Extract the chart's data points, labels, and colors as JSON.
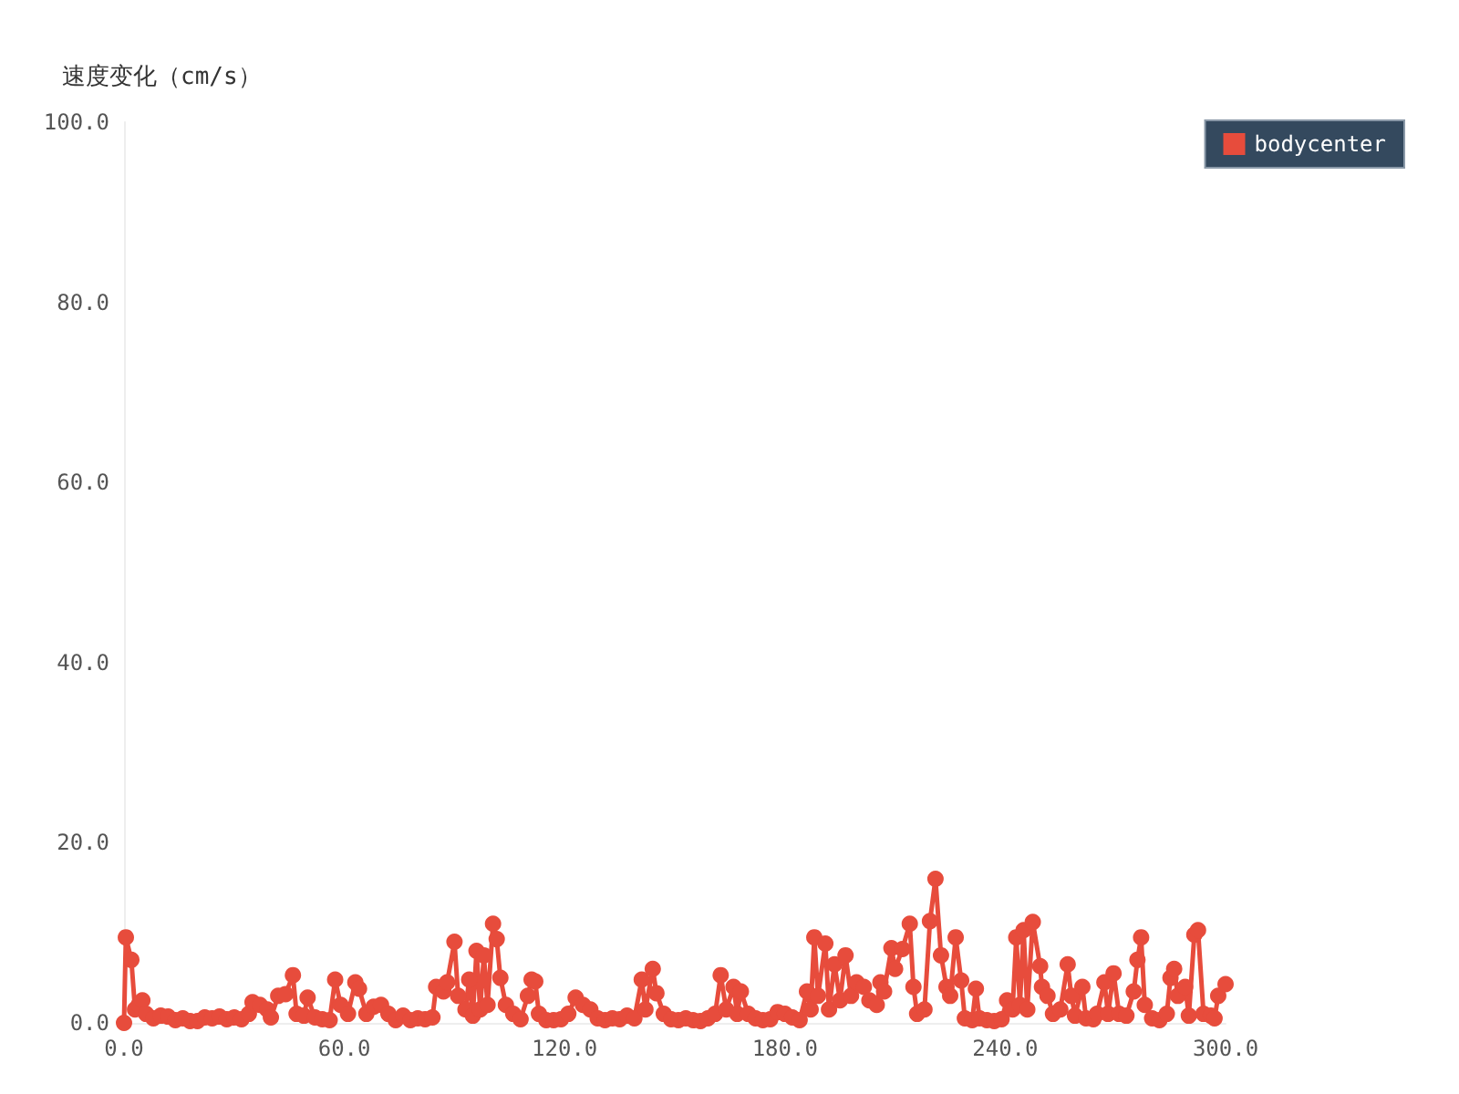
{
  "chart_data": {
    "type": "line",
    "ylabel": "速度变化（cm/s）",
    "x": [
      0,
      0.5,
      2,
      3,
      4,
      5,
      6,
      8,
      10,
      12,
      14,
      16,
      18,
      20,
      22,
      24,
      26,
      28,
      30,
      32,
      34,
      35,
      37,
      39,
      40,
      42,
      44,
      46,
      47,
      49,
      50,
      52,
      54,
      56,
      57.5,
      59,
      61,
      63,
      64,
      66,
      68,
      70,
      72,
      74,
      76,
      78,
      80,
      82,
      84,
      85,
      87,
      88,
      90,
      91,
      93,
      94,
      95,
      96,
      97,
      98,
      99,
      100.5,
      101.5,
      102.5,
      104,
      106,
      108,
      110,
      111,
      112,
      113,
      115,
      117,
      119,
      121,
      123,
      125,
      127,
      129,
      131,
      133,
      135,
      137,
      139,
      141,
      142,
      144,
      145,
      147,
      149,
      151,
      153,
      155,
      157,
      159,
      161,
      162.5,
      164,
      166,
      167,
      168,
      170,
      172,
      174,
      176,
      178,
      180,
      182,
      184,
      186,
      187,
      188,
      189,
      191,
      192,
      193.5,
      195,
      196.5,
      198,
      199.5,
      201.5,
      203,
      205,
      206,
      207,
      209,
      210,
      212,
      214,
      215,
      216,
      218,
      219.5,
      221,
      222.5,
      224,
      225,
      226.5,
      228,
      229,
      231,
      232,
      233,
      235,
      237,
      239,
      240.5,
      242,
      243,
      244,
      245,
      246,
      247.5,
      249.5,
      250,
      251.5,
      253,
      255,
      257,
      258,
      259,
      261,
      262,
      264,
      265,
      267,
      268,
      269.5,
      271,
      273,
      275,
      276,
      277,
      278,
      280,
      282,
      284,
      285,
      286,
      287,
      289,
      290,
      291.5,
      292.5,
      294,
      296,
      297,
      298,
      300
    ],
    "series": [
      {
        "name": "bodycenter",
        "color": "#e74c3c",
        "values": [
          0,
          9.5,
          7,
          1.5,
          2,
          2.5,
          1,
          0.5,
          0.8,
          0.7,
          0.3,
          0.5,
          0.2,
          0.2,
          0.6,
          0.5,
          0.7,
          0.4,
          0.6,
          0.4,
          1,
          2.3,
          2,
          1.5,
          0.6,
          3,
          3.2,
          5.3,
          1,
          0.8,
          2.8,
          0.6,
          0.4,
          0.3,
          4.8,
          2,
          1,
          4.5,
          3.8,
          1,
          1.8,
          2,
          1,
          0.3,
          0.8,
          0.3,
          0.5,
          0.4,
          0.6,
          4,
          3.5,
          4.5,
          9,
          3,
          1.5,
          4.8,
          0.8,
          8,
          1.5,
          7.5,
          2,
          11,
          9.3,
          5,
          2,
          1,
          0.4,
          3,
          4.8,
          4.6,
          1,
          0.3,
          0.3,
          0.4,
          1,
          2.8,
          2,
          1.5,
          0.5,
          0.3,
          0.5,
          0.4,
          0.8,
          0.5,
          4.8,
          1.5,
          6,
          3.3,
          1,
          0.4,
          0.3,
          0.5,
          0.3,
          0.2,
          0.5,
          1,
          5.3,
          1.5,
          4,
          1,
          3.5,
          1,
          0.5,
          0.3,
          0.4,
          1.2,
          1,
          0.6,
          0.3,
          3.5,
          1.5,
          9.5,
          3,
          8.8,
          1.5,
          6.5,
          2.5,
          7.5,
          3,
          4.5,
          4,
          2.5,
          2,
          4.5,
          3.5,
          8.3,
          6,
          8.2,
          11,
          4,
          1,
          1.5,
          11.3,
          16,
          7.5,
          4,
          3,
          9.5,
          4.7,
          0.5,
          0.3,
          3.8,
          0.5,
          0.3,
          0.2,
          0.4,
          2.5,
          1.5,
          9.5,
          2,
          10.3,
          1.5,
          11.2,
          6.3,
          4,
          3,
          1,
          1.5,
          6.5,
          3,
          0.8,
          4,
          0.5,
          0.4,
          1,
          4.5,
          1,
          5.5,
          1,
          0.8,
          3.5,
          7,
          9.5,
          2,
          0.5,
          0.3,
          1,
          5,
          6,
          3,
          4,
          0.8,
          9.8,
          10.3,
          1,
          0.8,
          0.5,
          3,
          4.3
        ]
      }
    ],
    "xlim": [
      0,
      300
    ],
    "xticks": [
      {
        "value": 0,
        "label": "0.0"
      },
      {
        "value": 60,
        "label": "60.0"
      },
      {
        "value": 120,
        "label": "120.0"
      },
      {
        "value": 180,
        "label": "180.0"
      },
      {
        "value": 240,
        "label": "240.0"
      },
      {
        "value": 300,
        "label": "300.0"
      }
    ],
    "ylim": [
      0,
      100
    ],
    "yticks": [
      {
        "value": 0,
        "label": "0.0"
      },
      {
        "value": 20,
        "label": "20.0"
      },
      {
        "value": 40,
        "label": "40.0"
      },
      {
        "value": 60,
        "label": "60.0"
      },
      {
        "value": 80,
        "label": "80.0"
      },
      {
        "value": 100,
        "label": "100.0"
      }
    ],
    "legend": "top right",
    "marker": "circle",
    "line_style": "solid",
    "grid": false
  }
}
